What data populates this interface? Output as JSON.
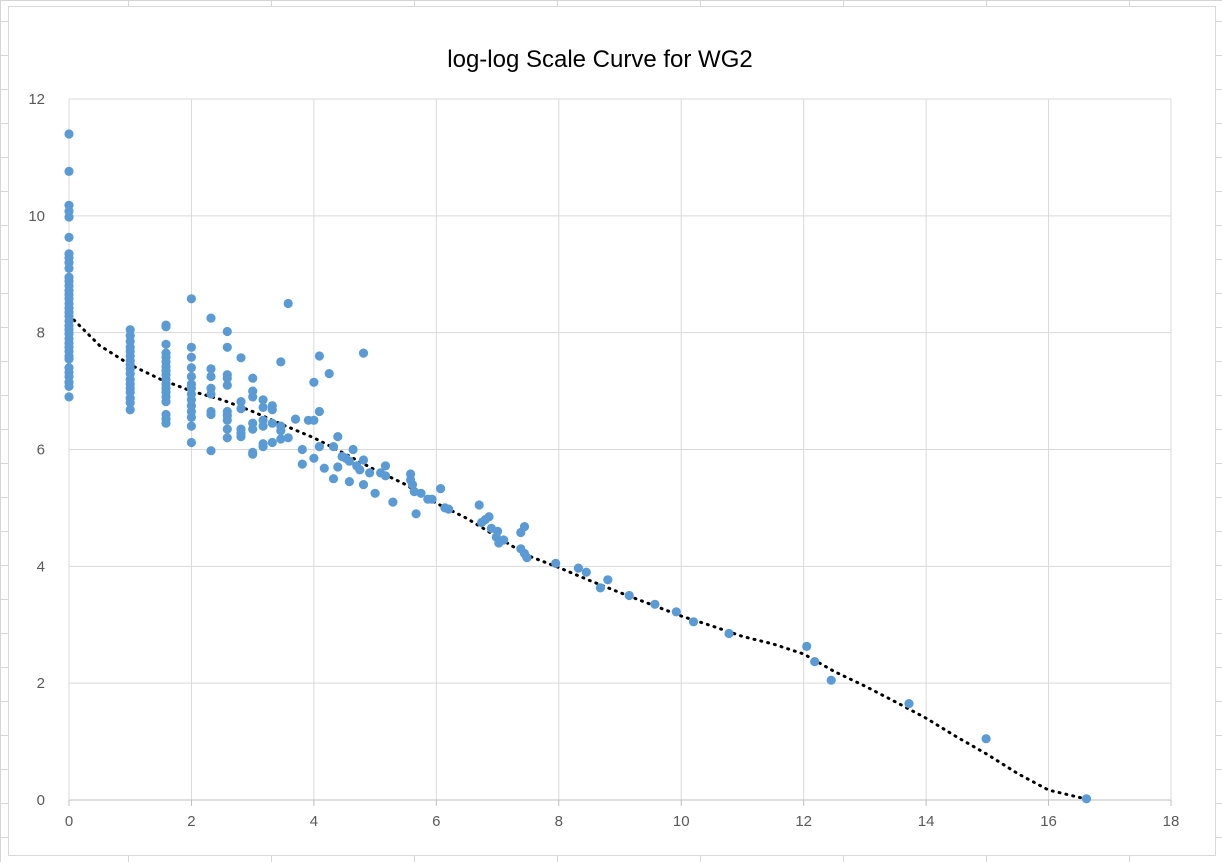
{
  "chart_data": {
    "type": "scatter",
    "title": "log-log Scale Curve for WG2",
    "xlabel": "",
    "ylabel": "",
    "xlim": [
      0,
      18
    ],
    "ylim": [
      0,
      12
    ],
    "x_ticks": [
      "0",
      "2",
      "4",
      "6",
      "8",
      "10",
      "12",
      "14",
      "16",
      "18"
    ],
    "y_ticks": [
      "0",
      "2",
      "4",
      "6",
      "8",
      "10",
      "12"
    ],
    "grid": true,
    "legend": "none",
    "series": [
      {
        "color": "#5b9bd5",
        "points": [
          [
            0,
            11.4
          ],
          [
            0,
            10.76
          ],
          [
            0,
            10.18
          ],
          [
            0,
            10.08
          ],
          [
            0,
            9.98
          ],
          [
            0,
            9.63
          ],
          [
            0,
            9.35
          ],
          [
            0,
            9.28
          ],
          [
            0,
            9.2
          ],
          [
            0,
            9.1
          ],
          [
            0,
            8.95
          ],
          [
            0,
            8.88
          ],
          [
            0,
            8.8
          ],
          [
            0,
            8.72
          ],
          [
            0,
            8.65
          ],
          [
            0,
            8.58
          ],
          [
            0,
            8.5
          ],
          [
            0,
            8.42
          ],
          [
            0,
            8.35
          ],
          [
            0,
            8.28
          ],
          [
            0,
            8.2
          ],
          [
            0,
            8.12
          ],
          [
            0,
            8.05
          ],
          [
            0,
            7.98
          ],
          [
            0,
            7.9
          ],
          [
            0,
            7.82
          ],
          [
            0,
            7.75
          ],
          [
            0,
            7.68
          ],
          [
            0,
            7.6
          ],
          [
            0,
            7.55
          ],
          [
            0,
            7.4
          ],
          [
            0,
            7.32
          ],
          [
            0,
            7.25
          ],
          [
            0,
            7.15
          ],
          [
            0,
            7.08
          ],
          [
            0,
            6.9
          ],
          [
            1,
            8.05
          ],
          [
            1,
            7.95
          ],
          [
            1,
            7.85
          ],
          [
            1,
            7.75
          ],
          [
            1,
            7.68
          ],
          [
            1,
            7.6
          ],
          [
            1,
            7.52
          ],
          [
            1,
            7.45
          ],
          [
            1,
            7.38
          ],
          [
            1,
            7.3
          ],
          [
            1,
            7.2
          ],
          [
            1,
            7.12
          ],
          [
            1,
            7.05
          ],
          [
            1,
            6.98
          ],
          [
            1,
            6.88
          ],
          [
            1,
            6.8
          ],
          [
            1,
            6.68
          ],
          [
            1.585,
            8.13
          ],
          [
            1.585,
            8.1
          ],
          [
            1.585,
            7.8
          ],
          [
            1.585,
            7.65
          ],
          [
            1.585,
            7.58
          ],
          [
            1.585,
            7.5
          ],
          [
            1.585,
            7.42
          ],
          [
            1.585,
            7.35
          ],
          [
            1.585,
            7.28
          ],
          [
            1.585,
            7.2
          ],
          [
            1.585,
            7.12
          ],
          [
            1.585,
            7.05
          ],
          [
            1.585,
            6.98
          ],
          [
            1.585,
            6.9
          ],
          [
            1.585,
            6.82
          ],
          [
            1.585,
            6.6
          ],
          [
            1.585,
            6.52
          ],
          [
            1.585,
            6.45
          ],
          [
            2,
            8.58
          ],
          [
            2,
            7.75
          ],
          [
            2,
            7.58
          ],
          [
            2,
            7.4
          ],
          [
            2,
            7.25
          ],
          [
            2,
            7.12
          ],
          [
            2,
            7.05
          ],
          [
            2,
            6.95
          ],
          [
            2,
            6.85
          ],
          [
            2,
            6.75
          ],
          [
            2,
            6.65
          ],
          [
            2,
            6.55
          ],
          [
            2,
            6.4
          ],
          [
            2,
            6.12
          ],
          [
            2.32,
            8.25
          ],
          [
            2.32,
            7.38
          ],
          [
            2.32,
            7.25
          ],
          [
            2.32,
            7.05
          ],
          [
            2.32,
            6.95
          ],
          [
            2.32,
            6.65
          ],
          [
            2.32,
            6.6
          ],
          [
            2.32,
            5.98
          ],
          [
            2.585,
            8.02
          ],
          [
            2.585,
            7.75
          ],
          [
            2.585,
            7.28
          ],
          [
            2.585,
            7.22
          ],
          [
            2.585,
            7.1
          ],
          [
            2.585,
            6.65
          ],
          [
            2.585,
            6.58
          ],
          [
            2.585,
            6.5
          ],
          [
            2.585,
            6.35
          ],
          [
            2.585,
            6.2
          ],
          [
            2.81,
            7.57
          ],
          [
            2.81,
            6.82
          ],
          [
            2.81,
            6.7
          ],
          [
            2.81,
            6.35
          ],
          [
            2.81,
            6.28
          ],
          [
            2.81,
            6.22
          ],
          [
            3,
            7.22
          ],
          [
            3,
            7.0
          ],
          [
            3,
            6.9
          ],
          [
            3,
            6.45
          ],
          [
            3,
            6.35
          ],
          [
            3,
            5.95
          ],
          [
            3,
            5.92
          ],
          [
            3.17,
            6.85
          ],
          [
            3.17,
            6.72
          ],
          [
            3.17,
            6.5
          ],
          [
            3.17,
            6.4
          ],
          [
            3.17,
            6.1
          ],
          [
            3.17,
            6.05
          ],
          [
            3.32,
            6.75
          ],
          [
            3.32,
            6.68
          ],
          [
            3.32,
            6.45
          ],
          [
            3.32,
            6.12
          ],
          [
            3.46,
            7.5
          ],
          [
            3.46,
            6.4
          ],
          [
            3.46,
            6.32
          ],
          [
            3.46,
            6.18
          ],
          [
            3.58,
            8.5
          ],
          [
            3.58,
            6.2
          ],
          [
            3.7,
            6.52
          ],
          [
            3.81,
            6.0
          ],
          [
            3.81,
            5.75
          ],
          [
            3.91,
            6.5
          ],
          [
            4.0,
            7.15
          ],
          [
            4.0,
            6.5
          ],
          [
            4.0,
            5.85
          ],
          [
            4.09,
            7.6
          ],
          [
            4.09,
            6.65
          ],
          [
            4.09,
            6.05
          ],
          [
            4.17,
            5.68
          ],
          [
            4.25,
            7.3
          ],
          [
            4.32,
            6.05
          ],
          [
            4.32,
            5.5
          ],
          [
            4.39,
            6.22
          ],
          [
            4.39,
            5.7
          ],
          [
            4.46,
            5.88
          ],
          [
            4.52,
            5.85
          ],
          [
            4.58,
            5.8
          ],
          [
            4.58,
            5.45
          ],
          [
            4.64,
            6.0
          ],
          [
            4.7,
            5.72
          ],
          [
            4.75,
            5.65
          ],
          [
            4.81,
            5.82
          ],
          [
            4.81,
            5.4
          ],
          [
            4.81,
            7.65
          ],
          [
            4.91,
            5.6
          ],
          [
            5.0,
            5.25
          ],
          [
            5.09,
            5.6
          ],
          [
            5.17,
            5.72
          ],
          [
            5.17,
            5.55
          ],
          [
            5.29,
            5.1
          ],
          [
            5.58,
            5.58
          ],
          [
            5.58,
            5.48
          ],
          [
            5.61,
            5.4
          ],
          [
            5.64,
            5.28
          ],
          [
            5.67,
            4.9
          ],
          [
            5.75,
            5.25
          ],
          [
            5.86,
            5.15
          ],
          [
            5.93,
            5.15
          ],
          [
            6.07,
            5.33
          ],
          [
            6.14,
            5.0
          ],
          [
            6.2,
            4.98
          ],
          [
            6.7,
            5.05
          ],
          [
            6.74,
            4.75
          ],
          [
            6.8,
            4.8
          ],
          [
            6.86,
            4.85
          ],
          [
            6.9,
            4.65
          ],
          [
            6.98,
            4.5
          ],
          [
            7.0,
            4.6
          ],
          [
            7.02,
            4.4
          ],
          [
            7.1,
            4.45
          ],
          [
            7.38,
            4.3
          ],
          [
            7.38,
            4.58
          ],
          [
            7.44,
            4.68
          ],
          [
            7.44,
            4.22
          ],
          [
            7.48,
            4.15
          ],
          [
            7.95,
            4.05
          ],
          [
            8.32,
            3.97
          ],
          [
            8.45,
            3.9
          ],
          [
            8.68,
            3.63
          ],
          [
            8.8,
            3.77
          ],
          [
            9.15,
            3.5
          ],
          [
            9.57,
            3.35
          ],
          [
            9.92,
            3.22
          ],
          [
            10.2,
            3.05
          ],
          [
            10.78,
            2.85
          ],
          [
            12.05,
            2.63
          ],
          [
            12.18,
            2.37
          ],
          [
            12.45,
            2.05
          ],
          [
            13.72,
            1.65
          ],
          [
            14.98,
            1.05
          ],
          [
            16.62,
            0.02
          ]
        ]
      },
      {
        "type": "trendline",
        "style": "dotted",
        "color": "#000000",
        "points": [
          [
            0,
            8.3
          ],
          [
            0.5,
            7.78
          ],
          [
            1,
            7.45
          ],
          [
            1.5,
            7.2
          ],
          [
            2,
            7.0
          ],
          [
            2.5,
            6.85
          ],
          [
            3,
            6.65
          ],
          [
            3.5,
            6.42
          ],
          [
            4,
            6.2
          ],
          [
            4.5,
            5.93
          ],
          [
            5,
            5.65
          ],
          [
            5.5,
            5.4
          ],
          [
            6,
            5.08
          ],
          [
            6.5,
            4.82
          ],
          [
            7,
            4.5
          ],
          [
            7.5,
            4.18
          ],
          [
            8,
            3.98
          ],
          [
            8.5,
            3.76
          ],
          [
            9,
            3.55
          ],
          [
            9.5,
            3.35
          ],
          [
            10,
            3.15
          ],
          [
            10.5,
            2.98
          ],
          [
            11,
            2.8
          ],
          [
            11.5,
            2.67
          ],
          [
            12,
            2.5
          ],
          [
            12.5,
            2.2
          ],
          [
            13,
            1.95
          ],
          [
            13.5,
            1.68
          ],
          [
            14,
            1.4
          ],
          [
            14.5,
            1.08
          ],
          [
            15,
            0.78
          ],
          [
            15.5,
            0.45
          ],
          [
            16,
            0.17
          ],
          [
            16.6,
            0.02
          ]
        ]
      }
    ]
  }
}
